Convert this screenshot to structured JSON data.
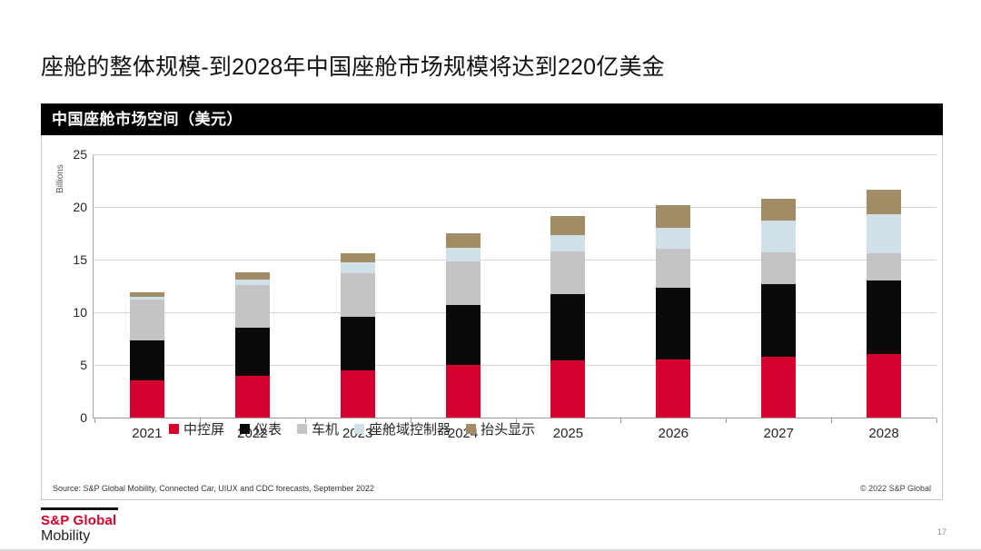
{
  "page": {
    "title": "座舱的整体规模-到2028年中国座舱市场规模将达到220亿美金",
    "page_number": "17"
  },
  "chart_panel": {
    "header": "中国座舱市场空间（美元）",
    "source": "Source: S&P Global Mobility, Connected Car, UIUX and CDC forecasts, September 2022",
    "copyright": "© 2022 S&P Global"
  },
  "footer": {
    "brand_top": "S&P Global",
    "brand_bottom": "Mobility"
  },
  "chart_data": {
    "type": "bar",
    "stacked": true,
    "title": "中国座舱市场空间（美元）",
    "xlabel": "",
    "ylabel": "Billions",
    "ylim": [
      0,
      25
    ],
    "ytick_step": 5,
    "grid": true,
    "legend_position": "bottom",
    "categories": [
      "2021",
      "2022",
      "2023",
      "2024",
      "2025",
      "2026",
      "2027",
      "2028"
    ],
    "series": [
      {
        "name": "中控屏",
        "color": "#d6002f",
        "values": [
          3.5,
          4.0,
          4.5,
          5.0,
          5.4,
          5.5,
          5.8,
          6.0
        ]
      },
      {
        "name": "仪表",
        "color": "#0a0a0a",
        "values": [
          3.8,
          4.5,
          5.1,
          5.7,
          6.3,
          6.8,
          6.9,
          7.0
        ]
      },
      {
        "name": "车机",
        "color": "#c4c4c4",
        "values": [
          3.9,
          4.1,
          4.1,
          4.1,
          4.1,
          3.7,
          3.0,
          2.6
        ]
      },
      {
        "name": "座舱域控制器",
        "color": "#cfe0e8",
        "values": [
          0.3,
          0.5,
          1.0,
          1.3,
          1.5,
          2.0,
          3.0,
          3.7
        ]
      },
      {
        "name": "抬头显示",
        "color": "#a18c66",
        "values": [
          0.4,
          0.7,
          0.9,
          1.4,
          1.8,
          2.2,
          2.1,
          2.3
        ]
      }
    ],
    "totals": [
      11.9,
      13.8,
      15.6,
      17.5,
      19.1,
      20.2,
      20.7,
      21.6
    ]
  }
}
